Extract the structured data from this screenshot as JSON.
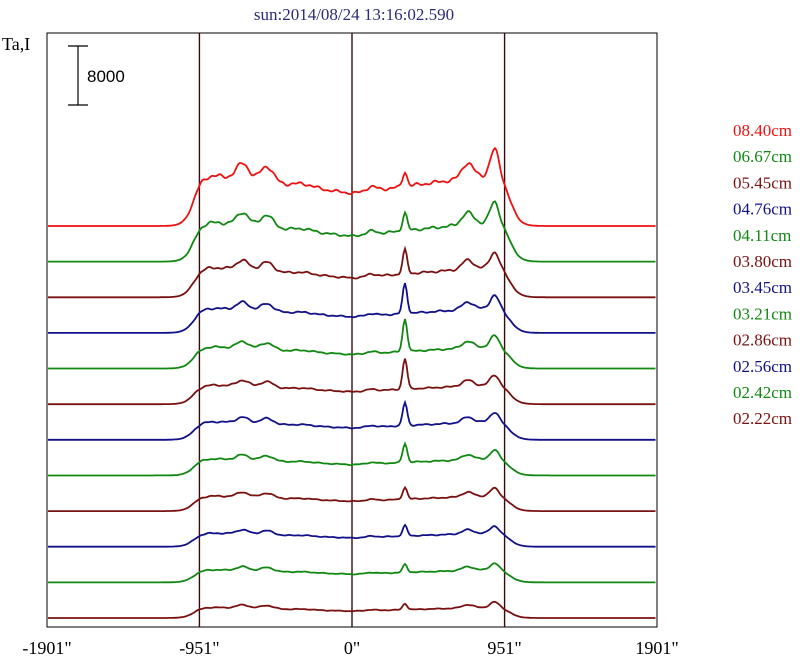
{
  "chart_data": {
    "type": "line",
    "title": "sun:2014/08/24 13:16:02.590",
    "ylabel": "Ta,I",
    "scale_bar_label": "8000",
    "xlim": [
      -1901,
      1901
    ],
    "x_ticks": [
      {
        "value": -1901,
        "label": "-1901\""
      },
      {
        "value": -951,
        "label": "-951\""
      },
      {
        "value": 0,
        "label": "0\""
      },
      {
        "value": 951,
        "label": "951\""
      },
      {
        "value": 1901,
        "label": "1901\""
      }
    ],
    "vertical_lines": [
      -951,
      0,
      951
    ],
    "grid": false,
    "legend_position": "right",
    "series": [
      {
        "name": "08.40cm",
        "color": "#ee1111",
        "baseline": 0,
        "height": 10000,
        "peak": 10000
      },
      {
        "name": "06.67cm",
        "color": "#118811",
        "baseline": 0,
        "height": 7800,
        "peak": 8700
      },
      {
        "name": "05.45cm",
        "color": "#7a1111",
        "baseline": 0,
        "height": 5900,
        "peak": 8000
      },
      {
        "name": "04.76cm",
        "color": "#111188",
        "baseline": 0,
        "height": 4900,
        "peak": 8000
      },
      {
        "name": "04.11cm",
        "color": "#118811",
        "baseline": 0,
        "height": 4300,
        "peak": 7900
      },
      {
        "name": "03.80cm",
        "color": "#7a1111",
        "baseline": 0,
        "height": 3800,
        "peak": 7200
      },
      {
        "name": "03.45cm",
        "color": "#111188",
        "baseline": 0,
        "height": 3600,
        "peak": 6000
      },
      {
        "name": "03.21cm",
        "color": "#118811",
        "baseline": 0,
        "height": 3300,
        "peak": 5200
      },
      {
        "name": "02.86cm",
        "color": "#7a1111",
        "baseline": 0,
        "height": 3000,
        "peak": 4000
      },
      {
        "name": "02.56cm",
        "color": "#111188",
        "baseline": 0,
        "height": 2700,
        "peak": 3600
      },
      {
        "name": "02.42cm",
        "color": "#118811",
        "baseline": 0,
        "height": 2500,
        "peak": 3100
      },
      {
        "name": "02.22cm",
        "color": "#7a1111",
        "baseline": 0,
        "height": 2100,
        "peak": 2500
      }
    ]
  }
}
